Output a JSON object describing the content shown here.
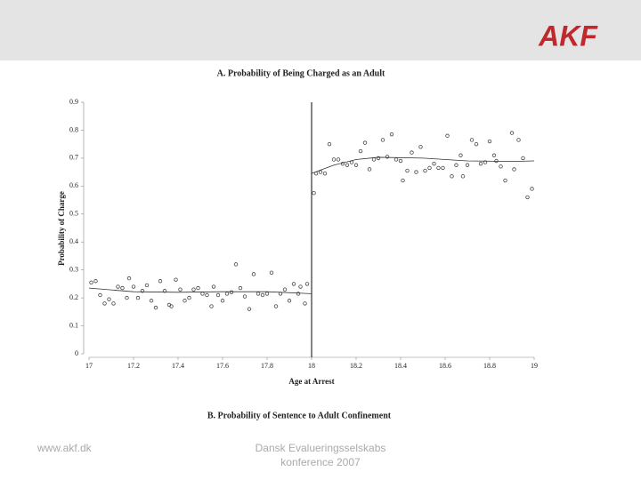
{
  "header": {
    "logo": "AKF"
  },
  "chart_data": {
    "type": "scatter",
    "title": "A. Probability of Being Charged as an Adult",
    "x_label": "Age at Arrest",
    "y_label": "Probability of Charge",
    "annotations": [
      "B. Probability of Sentence to Adult Confinement"
    ],
    "xlim": [
      17,
      19
    ],
    "ylim": [
      0,
      0.9
    ],
    "xticks": [
      17,
      17.2,
      17.4,
      17.6,
      17.8,
      18,
      18.2,
      18.4,
      18.6,
      18.8,
      19
    ],
    "yticks": [
      0,
      0.1,
      0.2,
      0.3,
      0.4,
      0.5,
      0.6,
      0.7,
      0.8,
      0.9
    ],
    "vline": 18,
    "series": [
      {
        "type": "scatter",
        "color": "#444444",
        "x": [
          17.01,
          17.03,
          17.05,
          17.07,
          17.09,
          17.11,
          17.13,
          17.15,
          17.17,
          17.18,
          17.2,
          17.22,
          17.24,
          17.26,
          17.28,
          17.3,
          17.32,
          17.34,
          17.36,
          17.37,
          17.39,
          17.41,
          17.43,
          17.45,
          17.47,
          17.49,
          17.51,
          17.53,
          17.55,
          17.56,
          17.58,
          17.6,
          17.62,
          17.64,
          17.66,
          17.68,
          17.7,
          17.72,
          17.74,
          17.76,
          17.78,
          17.8,
          17.82,
          17.84,
          17.86,
          17.88,
          17.9,
          17.92,
          17.94,
          17.95,
          17.97,
          17.98,
          18.01,
          18.02,
          18.04,
          18.06,
          18.08,
          18.1,
          18.12,
          18.14,
          18.16,
          18.18,
          18.2,
          18.22,
          18.24,
          18.26,
          18.28,
          18.3,
          18.32,
          18.34,
          18.36,
          18.38,
          18.4,
          18.41,
          18.43,
          18.45,
          18.47,
          18.49,
          18.51,
          18.53,
          18.55,
          18.57,
          18.59,
          18.61,
          18.63,
          18.65,
          18.67,
          18.68,
          18.7,
          18.72,
          18.74,
          18.76,
          18.78,
          18.8,
          18.82,
          18.83,
          18.85,
          18.87,
          18.9,
          18.91,
          18.93,
          18.95,
          18.97,
          18.99
        ],
        "values": [
          0.255,
          0.26,
          0.21,
          0.18,
          0.195,
          0.18,
          0.24,
          0.235,
          0.2,
          0.27,
          0.24,
          0.2,
          0.225,
          0.245,
          0.19,
          0.165,
          0.26,
          0.225,
          0.175,
          0.17,
          0.265,
          0.23,
          0.19,
          0.2,
          0.23,
          0.235,
          0.215,
          0.21,
          0.17,
          0.24,
          0.21,
          0.19,
          0.215,
          0.22,
          0.32,
          0.235,
          0.205,
          0.16,
          0.285,
          0.215,
          0.21,
          0.215,
          0.29,
          0.17,
          0.215,
          0.23,
          0.19,
          0.25,
          0.215,
          0.24,
          0.18,
          0.25,
          0.575,
          0.645,
          0.65,
          0.645,
          0.75,
          0.695,
          0.695,
          0.68,
          0.675,
          0.685,
          0.675,
          0.725,
          0.755,
          0.66,
          0.695,
          0.7,
          0.765,
          0.705,
          0.785,
          0.695,
          0.69,
          0.62,
          0.655,
          0.72,
          0.65,
          0.74,
          0.655,
          0.665,
          0.68,
          0.665,
          0.665,
          0.78,
          0.635,
          0.675,
          0.71,
          0.635,
          0.675,
          0.765,
          0.75,
          0.68,
          0.685,
          0.76,
          0.71,
          0.69,
          0.67,
          0.62,
          0.79,
          0.66,
          0.765,
          0.7,
          0.56,
          0.59
        ]
      },
      {
        "type": "line",
        "color": "#333333",
        "x": [
          17,
          17.2,
          17.4,
          17.6,
          17.8,
          18,
          null,
          18,
          18.1,
          18.2,
          18.3,
          18.5,
          18.7,
          18.9,
          19
        ],
        "values": [
          0.235,
          0.222,
          0.22,
          0.222,
          0.222,
          0.215,
          null,
          0.645,
          0.675,
          0.695,
          0.703,
          0.7,
          0.69,
          0.688,
          0.69
        ]
      }
    ]
  },
  "footer": {
    "url": "www.akf.dk",
    "event": [
      "Dansk Evalueringsselskabs",
      "konference 2007"
    ]
  }
}
